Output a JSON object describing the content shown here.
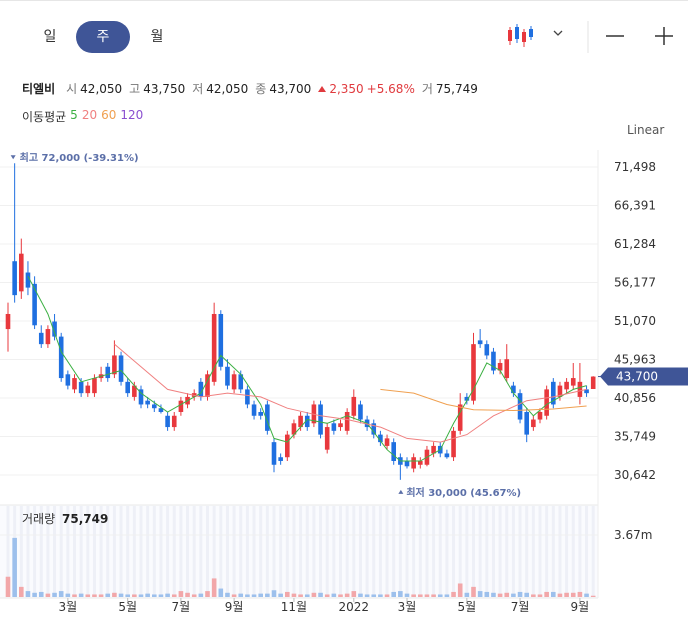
{
  "tabs": [
    "일",
    "주",
    "월"
  ],
  "scale_mode": "Linear",
  "quote": {
    "name": "티엘비",
    "open_label": "시",
    "open": "42,050",
    "high_label": "고",
    "high": "43,750",
    "low_label": "저",
    "low": "42,050",
    "close_label": "종",
    "close": "43,700",
    "change": "2,350",
    "change_pct": "+5.68%",
    "volume_label": "거",
    "volume": "75,749"
  },
  "ma_label": "이동평균",
  "chart_data": [
    {
      "type": "candlestick",
      "up_color": "#e8383d",
      "down_color": "#1f6fe0",
      "candles": [
        [
          50000,
          53500,
          47000,
          52000
        ],
        [
          59000,
          72000,
          53500,
          54500
        ],
        [
          55000,
          62000,
          54000,
          60000
        ],
        [
          57500,
          59000,
          54500,
          55500
        ],
        [
          56000,
          57000,
          50000,
          50500
        ],
        [
          49500,
          50500,
          47500,
          48000
        ],
        [
          48000,
          50500,
          47500,
          50000
        ],
        [
          51000,
          52000,
          48500,
          49000
        ],
        [
          49000,
          49500,
          43000,
          43500
        ],
        [
          44000,
          44500,
          42000,
          42500
        ],
        [
          42000,
          44000,
          41500,
          43500
        ],
        [
          43000,
          43500,
          41000,
          41500
        ],
        [
          41500,
          43000,
          41000,
          42500
        ],
        [
          41500,
          44000,
          41000,
          43500
        ],
        [
          43500,
          45000,
          43000,
          44000
        ],
        [
          45000,
          45500,
          43000,
          43500
        ],
        [
          44000,
          48500,
          43500,
          46500
        ],
        [
          46500,
          47000,
          42500,
          43000
        ],
        [
          43000,
          43500,
          41000,
          41500
        ],
        [
          41000,
          43000,
          40500,
          42500
        ],
        [
          42000,
          42500,
          39500,
          40000
        ],
        [
          40500,
          41000,
          39500,
          40000
        ],
        [
          40000,
          40500,
          39000,
          39500
        ],
        [
          39500,
          40000,
          38800,
          39000
        ],
        [
          38500,
          39000,
          36500,
          37000
        ],
        [
          37000,
          39000,
          36500,
          38500
        ],
        [
          39000,
          41000,
          38500,
          40500
        ],
        [
          40000,
          41500,
          39500,
          41000
        ],
        [
          41000,
          42000,
          40500,
          41500
        ],
        [
          43000,
          43500,
          40500,
          41000
        ],
        [
          41000,
          44500,
          40500,
          44000
        ],
        [
          43000,
          53500,
          42500,
          52000
        ],
        [
          52000,
          52500,
          44500,
          45000
        ],
        [
          45000,
          46000,
          42000,
          42500
        ],
        [
          42000,
          44500,
          41500,
          44000
        ],
        [
          44000,
          44500,
          41500,
          42000
        ],
        [
          42000,
          42500,
          39500,
          40000
        ],
        [
          40000,
          40500,
          38000,
          38500
        ],
        [
          39000,
          39500,
          38000,
          38500
        ],
        [
          40000,
          40500,
          36000,
          36500
        ],
        [
          35000,
          35500,
          31000,
          32000
        ],
        [
          33000,
          33500,
          32000,
          32500
        ],
        [
          33000,
          36500,
          32500,
          36000
        ],
        [
          36000,
          38000,
          35500,
          37500
        ],
        [
          37000,
          39000,
          36500,
          38500
        ],
        [
          38500,
          39000,
          36500,
          37000
        ],
        [
          37500,
          40500,
          37000,
          40000
        ],
        [
          40000,
          40500,
          35500,
          36000
        ],
        [
          34000,
          37500,
          33500,
          37000
        ],
        [
          37500,
          38000,
          36000,
          36500
        ],
        [
          37000,
          38000,
          36500,
          37500
        ],
        [
          36500,
          39500,
          36000,
          39000
        ],
        [
          38500,
          42000,
          38000,
          41000
        ],
        [
          40000,
          40500,
          37500,
          38000
        ],
        [
          38000,
          38500,
          36500,
          37000
        ],
        [
          37500,
          38000,
          35500,
          36000
        ],
        [
          36000,
          36500,
          34500,
          35000
        ],
        [
          34500,
          36000,
          34000,
          35500
        ],
        [
          35000,
          35500,
          32000,
          32500
        ],
        [
          33000,
          33500,
          30000,
          32000
        ],
        [
          32500,
          33000,
          31500,
          31800
        ],
        [
          31500,
          33500,
          31000,
          33000
        ],
        [
          32000,
          33000,
          31500,
          32500
        ],
        [
          32000,
          34500,
          31800,
          34000
        ],
        [
          33500,
          35000,
          33000,
          34500
        ],
        [
          34500,
          35000,
          33000,
          33500
        ],
        [
          33500,
          34000,
          32800,
          33000
        ],
        [
          33000,
          37000,
          32500,
          36500
        ],
        [
          36500,
          41500,
          36000,
          40000
        ],
        [
          41000,
          41500,
          40000,
          40500
        ],
        [
          40500,
          49500,
          40000,
          48000
        ],
        [
          48500,
          50000,
          47500,
          48000
        ],
        [
          48000,
          48500,
          46000,
          46500
        ],
        [
          47000,
          47500,
          44000,
          44500
        ],
        [
          44500,
          46000,
          44000,
          45500
        ],
        [
          43500,
          48000,
          43000,
          46000
        ],
        [
          42500,
          43000,
          41000,
          41500
        ],
        [
          41500,
          42000,
          37500,
          38000
        ],
        [
          39000,
          39500,
          35000,
          36000
        ],
        [
          37000,
          38500,
          36500,
          38000
        ],
        [
          38000,
          39500,
          37500,
          39000
        ],
        [
          38500,
          42500,
          38000,
          42000
        ],
        [
          43000,
          43500,
          39500,
          40000
        ],
        [
          41000,
          43000,
          40500,
          42500
        ],
        [
          42000,
          43500,
          41500,
          43000
        ],
        [
          42500,
          45500,
          42000,
          43500
        ],
        [
          41000,
          45500,
          40000,
          43000
        ],
        [
          42000,
          42500,
          41000,
          41500
        ],
        [
          42050,
          43750,
          42050,
          43700
        ]
      ],
      "ylim": [
        27989,
        73753
      ],
      "yticks": [
        {
          "value": 30642,
          "label": "30,642"
        },
        {
          "value": 35749,
          "label": "35,749"
        },
        {
          "value": 40856,
          "label": "40,856"
        },
        {
          "value": 45963,
          "label": "45,963"
        },
        {
          "value": 51070,
          "label": "51,070"
        },
        {
          "value": 56177,
          "label": "56,177"
        },
        {
          "value": 61284,
          "label": "61,284"
        },
        {
          "value": 66391,
          "label": "66,391"
        },
        {
          "value": 71498,
          "label": "71,498"
        }
      ],
      "xticks": [
        {
          "value": 9,
          "label": "3월"
        },
        {
          "value": 18,
          "label": "5월"
        },
        {
          "value": 26,
          "label": "7월"
        },
        {
          "value": 34,
          "label": "9월"
        },
        {
          "value": 43,
          "label": "11월"
        },
        {
          "value": 52,
          "label": "2022"
        },
        {
          "value": 60,
          "label": "3월"
        },
        {
          "value": 69,
          "label": "5월"
        },
        {
          "value": 77,
          "label": "7월"
        },
        {
          "value": 86,
          "label": "9월"
        }
      ],
      "series": [
        {
          "name": "5",
          "color": "#3cb043",
          "x": [
            3,
            6,
            8,
            11,
            15,
            17,
            20,
            24,
            27,
            29,
            32,
            35,
            38,
            40,
            42,
            45,
            48,
            51,
            54,
            57,
            59,
            62,
            65,
            67,
            70,
            72,
            74,
            76,
            79,
            81,
            85,
            87
          ],
          "values": [
            57000,
            52000,
            47000,
            43000,
            44000,
            44500,
            41500,
            39000,
            40500,
            41500,
            46500,
            44000,
            40000,
            35500,
            35000,
            38000,
            37500,
            38500,
            37500,
            34000,
            32500,
            32500,
            34000,
            37500,
            42000,
            45500,
            44500,
            41500,
            38500,
            40000,
            42000,
            42500
          ]
        },
        {
          "name": "20",
          "color": "#f08080",
          "x": [
            16,
            20,
            24,
            29,
            33,
            38,
            42,
            47,
            51,
            56,
            60,
            65,
            69,
            73,
            78,
            82,
            87
          ],
          "values": [
            48000,
            45000,
            42000,
            41000,
            41500,
            41000,
            39500,
            38500,
            38000,
            37000,
            35500,
            35000,
            36000,
            38500,
            40500,
            41000,
            42000
          ]
        },
        {
          "name": "60",
          "color": "#f0a050",
          "x": [
            56,
            61,
            66,
            70,
            76,
            82,
            87
          ],
          "values": [
            42000,
            41500,
            40000,
            39300,
            39200,
            39400,
            39800
          ]
        },
        {
          "name": "120",
          "color": "#8a4fd0",
          "x": [],
          "values": []
        }
      ],
      "last": {
        "value": 43700,
        "label": "43,700"
      },
      "annotations": [
        "최고 72,000 (-39.31%)",
        "최저 30,000 (45.67%)"
      ]
    },
    {
      "type": "bar",
      "title": "거래량",
      "up_color": "#f2a7a9",
      "down_color": "#9dc0ec",
      "values": [
        1200000,
        3500000,
        600000,
        350000,
        250000,
        300000,
        200000,
        250000,
        350000,
        200000,
        150000,
        200000,
        150000,
        150000,
        150000,
        200000,
        250000,
        200000,
        150000,
        150000,
        150000,
        200000,
        150000,
        150000,
        200000,
        150000,
        350000,
        250000,
        150000,
        200000,
        350000,
        1100000,
        500000,
        250000,
        150000,
        200000,
        150000,
        150000,
        200000,
        200000,
        400000,
        200000,
        300000,
        200000,
        150000,
        150000,
        250000,
        250000,
        150000,
        200000,
        150000,
        200000,
        350000,
        200000,
        150000,
        150000,
        150000,
        150000,
        300000,
        350000,
        200000,
        150000,
        150000,
        150000,
        150000,
        150000,
        150000,
        300000,
        800000,
        250000,
        600000,
        350000,
        300000,
        250000,
        200000,
        250000,
        200000,
        300000,
        250000,
        150000,
        150000,
        300000,
        300000,
        200000,
        250000,
        250000,
        300000,
        200000,
        75749
      ],
      "value_labels_last": "75,749",
      "ylim": [
        0,
        5268000
      ],
      "yticks": [
        {
          "value": 3670000,
          "label": "3.67m"
        }
      ]
    }
  ]
}
